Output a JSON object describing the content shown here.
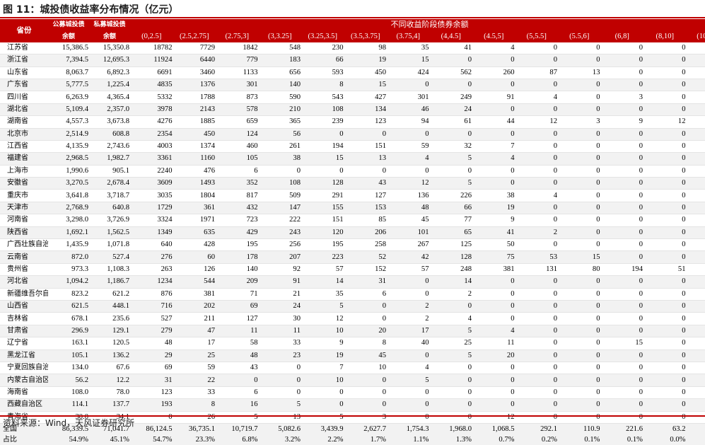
{
  "title": "图 11：城投债收益率分布情况（亿元）",
  "source": "资料来源：Wind，天风证券研究所",
  "header": {
    "province": "省份",
    "public_label": "公募城投债",
    "private_label": "私募城投债",
    "amount_label": "余额",
    "group_label": "不同收益阶段债券余额",
    "ranges": [
      "(0,2.5]",
      "(2.5,2.75]",
      "(2.75,3]",
      "(3,3.25]",
      "(3.25,3.5]",
      "(3.5,3.75]",
      "(3.75,4]",
      "(4,4.5]",
      "(4.5,5]",
      "(5,5.5]",
      "(5.5,6]",
      "(6,8]",
      "(8,10]",
      "(10,15]"
    ]
  },
  "rows": [
    {
      "province": "江苏省",
      "public": "15,386.5",
      "private": "15,350.8",
      "values": [
        "18782",
        "7729",
        "1842",
        "548",
        "230",
        "98",
        "35",
        "41",
        "4",
        "0",
        "0",
        "0",
        "0",
        "0"
      ]
    },
    {
      "province": "浙江省",
      "public": "7,394.5",
      "private": "12,695.3",
      "values": [
        "11924",
        "6440",
        "779",
        "183",
        "66",
        "19",
        "15",
        "0",
        "0",
        "0",
        "0",
        "0",
        "0",
        "0"
      ]
    },
    {
      "province": "山东省",
      "public": "8,063.7",
      "private": "6,892.3",
      "values": [
        "6691",
        "3460",
        "1133",
        "656",
        "593",
        "450",
        "424",
        "562",
        "260",
        "87",
        "13",
        "0",
        "0",
        "0"
      ]
    },
    {
      "province": "广东省",
      "public": "5,777.5",
      "private": "1,225.4",
      "values": [
        "4835",
        "1376",
        "301",
        "140",
        "8",
        "15",
        "0",
        "0",
        "0",
        "0",
        "0",
        "0",
        "0",
        "0"
      ]
    },
    {
      "province": "四川省",
      "public": "6,263.9",
      "private": "4,365.4",
      "values": [
        "5332",
        "1788",
        "873",
        "590",
        "543",
        "427",
        "301",
        "249",
        "91",
        "4",
        "0",
        "3",
        "0",
        "0"
      ]
    },
    {
      "province": "湖北省",
      "public": "5,109.4",
      "private": "2,357.0",
      "values": [
        "3978",
        "2143",
        "578",
        "210",
        "108",
        "134",
        "46",
        "24",
        "0",
        "0",
        "0",
        "0",
        "0",
        "0"
      ]
    },
    {
      "province": "湖南省",
      "public": "4,557.3",
      "private": "3,673.8",
      "values": [
        "4276",
        "1885",
        "659",
        "365",
        "239",
        "123",
        "94",
        "61",
        "44",
        "12",
        "3",
        "9",
        "12",
        "0"
      ]
    },
    {
      "province": "北京市",
      "public": "2,514.9",
      "private": "608.8",
      "values": [
        "2354",
        "450",
        "124",
        "56",
        "0",
        "0",
        "0",
        "0",
        "0",
        "0",
        "0",
        "0",
        "0",
        "0"
      ]
    },
    {
      "province": "江西省",
      "public": "4,135.9",
      "private": "2,743.6",
      "values": [
        "4003",
        "1374",
        "460",
        "261",
        "194",
        "151",
        "59",
        "32",
        "7",
        "0",
        "0",
        "0",
        "0",
        "0"
      ]
    },
    {
      "province": "福建省",
      "public": "2,968.5",
      "private": "1,982.7",
      "values": [
        "3361",
        "1160",
        "105",
        "38",
        "15",
        "13",
        "4",
        "5",
        "4",
        "0",
        "0",
        "0",
        "0",
        "0"
      ]
    },
    {
      "province": "上海市",
      "public": "1,990.6",
      "private": "905.1",
      "values": [
        "2240",
        "476",
        "6",
        "0",
        "0",
        "0",
        "0",
        "0",
        "0",
        "0",
        "0",
        "0",
        "0",
        "0"
      ]
    },
    {
      "province": "安徽省",
      "public": "3,270.5",
      "private": "2,678.4",
      "values": [
        "3609",
        "1493",
        "352",
        "108",
        "128",
        "43",
        "12",
        "5",
        "0",
        "0",
        "0",
        "0",
        "0",
        "0"
      ]
    },
    {
      "province": "重庆市",
      "public": "3,641.8",
      "private": "3,718.7",
      "values": [
        "3035",
        "1804",
        "817",
        "509",
        "291",
        "127",
        "136",
        "226",
        "38",
        "4",
        "0",
        "0",
        "0",
        "0"
      ]
    },
    {
      "province": "天津市",
      "public": "2,768.9",
      "private": "640.8",
      "values": [
        "1729",
        "361",
        "432",
        "147",
        "155",
        "153",
        "48",
        "66",
        "19",
        "0",
        "0",
        "0",
        "0",
        "0"
      ]
    },
    {
      "province": "河南省",
      "public": "3,298.0",
      "private": "3,726.9",
      "values": [
        "3324",
        "1971",
        "723",
        "222",
        "151",
        "85",
        "45",
        "77",
        "9",
        "0",
        "0",
        "0",
        "0",
        "0"
      ]
    },
    {
      "province": "陕西省",
      "public": "1,692.1",
      "private": "1,562.5",
      "values": [
        "1349",
        "635",
        "429",
        "243",
        "120",
        "206",
        "101",
        "65",
        "41",
        "2",
        "0",
        "0",
        "0",
        "0"
      ]
    },
    {
      "province": "广西壮族自治",
      "public": "1,435.9",
      "private": "1,071.8",
      "values": [
        "640",
        "428",
        "195",
        "256",
        "195",
        "258",
        "267",
        "125",
        "50",
        "0",
        "0",
        "0",
        "0",
        "0"
      ]
    },
    {
      "province": "云南省",
      "public": "872.0",
      "private": "527.4",
      "values": [
        "276",
        "60",
        "178",
        "207",
        "223",
        "52",
        "42",
        "128",
        "75",
        "53",
        "15",
        "0",
        "0",
        "0"
      ]
    },
    {
      "province": "贵州省",
      "public": "973.3",
      "private": "1,108.3",
      "values": [
        "263",
        "126",
        "140",
        "92",
        "57",
        "152",
        "57",
        "248",
        "381",
        "131",
        "80",
        "194",
        "51",
        "10"
      ]
    },
    {
      "province": "河北省",
      "public": "1,094.2",
      "private": "1,186.7",
      "values": [
        "1234",
        "544",
        "209",
        "91",
        "14",
        "31",
        "0",
        "14",
        "0",
        "0",
        "0",
        "0",
        "0",
        "0"
      ]
    },
    {
      "province": "新疆维吾尔自",
      "public": "823.2",
      "private": "621.2",
      "values": [
        "876",
        "381",
        "71",
        "21",
        "35",
        "6",
        "0",
        "2",
        "0",
        "0",
        "0",
        "0",
        "0",
        "0"
      ]
    },
    {
      "province": "山西省",
      "public": "621.5",
      "private": "448.1",
      "values": [
        "716",
        "202",
        "69",
        "24",
        "5",
        "0",
        "2",
        "0",
        "0",
        "0",
        "0",
        "0",
        "0",
        "0"
      ]
    },
    {
      "province": "吉林省",
      "public": "678.1",
      "private": "235.6",
      "values": [
        "527",
        "211",
        "127",
        "30",
        "12",
        "0",
        "2",
        "4",
        "0",
        "0",
        "0",
        "0",
        "0",
        "0"
      ]
    },
    {
      "province": "甘肃省",
      "public": "296.9",
      "private": "129.1",
      "values": [
        "279",
        "47",
        "11",
        "11",
        "10",
        "20",
        "17",
        "5",
        "4",
        "0",
        "0",
        "0",
        "0",
        "0"
      ]
    },
    {
      "province": "辽宁省",
      "public": "163.1",
      "private": "120.5",
      "values": [
        "48",
        "17",
        "58",
        "33",
        "9",
        "8",
        "40",
        "25",
        "11",
        "0",
        "0",
        "15",
        "0",
        "0"
      ]
    },
    {
      "province": "黑龙江省",
      "public": "105.1",
      "private": "136.2",
      "values": [
        "29",
        "25",
        "48",
        "23",
        "19",
        "45",
        "0",
        "5",
        "20",
        "0",
        "0",
        "0",
        "0",
        "0"
      ]
    },
    {
      "province": "宁夏回族自治",
      "public": "134.0",
      "private": "67.6",
      "values": [
        "69",
        "59",
        "43",
        "0",
        "7",
        "10",
        "4",
        "0",
        "0",
        "0",
        "0",
        "0",
        "0",
        "0"
      ]
    },
    {
      "province": "内蒙古自治区",
      "public": "56.2",
      "private": "12.2",
      "values": [
        "31",
        "22",
        "0",
        "0",
        "10",
        "0",
        "5",
        "0",
        "0",
        "0",
        "0",
        "0",
        "0",
        "0"
      ]
    },
    {
      "province": "海南省",
      "public": "108.0",
      "private": "78.0",
      "values": [
        "123",
        "33",
        "6",
        "0",
        "0",
        "0",
        "0",
        "0",
        "0",
        "0",
        "0",
        "0",
        "0",
        "0"
      ]
    },
    {
      "province": "西藏自治区",
      "public": "114.1",
      "private": "137.7",
      "values": [
        "193",
        "8",
        "16",
        "5",
        "0",
        "0",
        "0",
        "0",
        "0",
        "0",
        "0",
        "0",
        "0",
        "0"
      ]
    },
    {
      "province": "青海省",
      "public": "30.0",
      "private": "34.1",
      "values": [
        "0",
        "26",
        "5",
        "13",
        "5",
        "3",
        "0",
        "0",
        "12",
        "0",
        "0",
        "0",
        "0",
        "0"
      ]
    }
  ],
  "footer": [
    {
      "province": "全国",
      "public": "86,339.5",
      "private": "71,041.7",
      "values": [
        "86,124.5",
        "36,735.1",
        "10,719.7",
        "5,082.6",
        "3,439.9",
        "2,627.7",
        "1,754.3",
        "1,968.0",
        "1,068.5",
        "292.1",
        "110.9",
        "221.6",
        "63.2",
        "10.2"
      ]
    },
    {
      "province": "占比",
      "public": "54.9%",
      "private": "45.1%",
      "values": [
        "54.7%",
        "23.3%",
        "6.8%",
        "3.2%",
        "2.2%",
        "1.7%",
        "1.1%",
        "1.3%",
        "0.7%",
        "0.2%",
        "0.1%",
        "0.1%",
        "0.0%",
        "0.0%"
      ]
    }
  ]
}
